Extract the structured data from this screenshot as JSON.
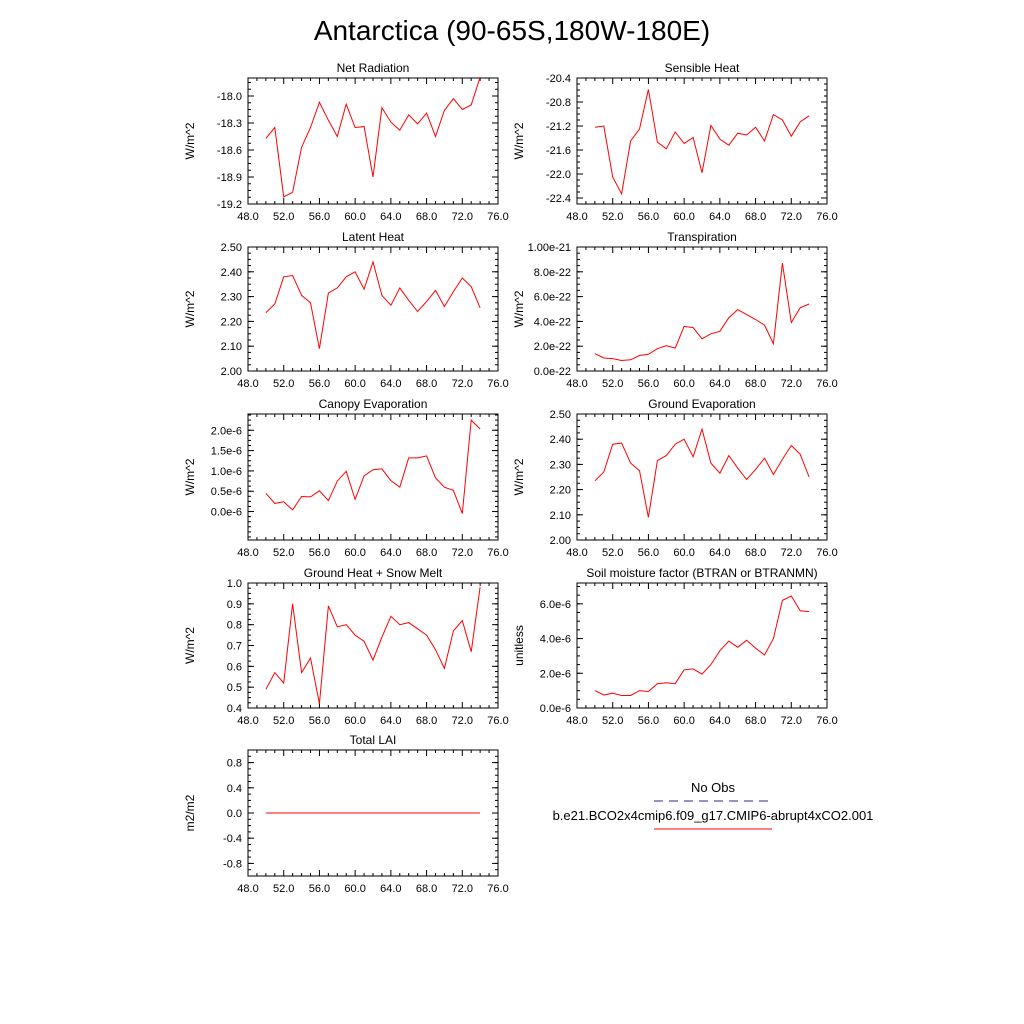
{
  "title": "Antarctica (90-65S,180W-180E)",
  "colors": {
    "series": "#ff0000",
    "obs": "#2a2a8a",
    "axis": "#000000"
  },
  "legend": {
    "obs_label": "No Obs",
    "case_label": "b.e21.BCO2x4cmip6.f09_g17.CMIP6-abrupt4xCO2.001"
  },
  "chart_data": [
    {
      "type": "line",
      "title": "Net Radiation",
      "ylabel": "W/m^2",
      "xlim": [
        48,
        76
      ],
      "ylim": [
        -19.2,
        -17.8
      ],
      "xticks": [
        "48.0",
        "52.0",
        "56.0",
        "60.0",
        "64.0",
        "68.0",
        "72.0",
        "76.0"
      ],
      "yticks": [
        -19.2,
        -18.9,
        -18.6,
        -18.3,
        -18.0
      ],
      "ytick_labels": [
        "-19.2",
        "-18.9",
        "-18.6",
        "-18.3",
        "-18.0"
      ],
      "x": [
        50,
        51,
        52,
        53,
        54,
        55,
        56,
        57,
        58,
        59,
        60,
        61,
        62,
        63,
        64,
        65,
        66,
        67,
        68,
        69,
        70,
        71,
        72,
        73,
        74
      ],
      "values": [
        -18.47,
        -18.35,
        -19.12,
        -19.07,
        -18.57,
        -18.35,
        -18.07,
        -18.27,
        -18.45,
        -18.09,
        -18.35,
        -18.34,
        -18.9,
        -18.13,
        -18.29,
        -18.38,
        -18.21,
        -18.31,
        -18.19,
        -18.45,
        -18.16,
        -18.03,
        -18.15,
        -18.1,
        -17.79
      ]
    },
    {
      "type": "line",
      "title": "Sensible Heat",
      "ylabel": "W/m^2",
      "xlim": [
        48,
        76
      ],
      "ylim": [
        -22.5,
        -20.4
      ],
      "xticks": [
        "48.0",
        "52.0",
        "56.0",
        "60.0",
        "64.0",
        "68.0",
        "72.0",
        "76.0"
      ],
      "yticks": [
        -22.4,
        -22.0,
        -21.6,
        -21.2,
        -20.8,
        -20.4
      ],
      "ytick_labels": [
        "-22.4",
        "-22.0",
        "-21.6",
        "-21.2",
        "-20.8",
        "-20.4"
      ],
      "x": [
        50,
        51,
        52,
        53,
        54,
        55,
        56,
        57,
        58,
        59,
        60,
        61,
        62,
        63,
        64,
        65,
        66,
        67,
        68,
        69,
        70,
        71,
        72,
        73,
        74
      ],
      "values": [
        -21.22,
        -21.2,
        -22.05,
        -22.33,
        -21.45,
        -21.25,
        -20.59,
        -21.47,
        -21.58,
        -21.3,
        -21.49,
        -21.39,
        -21.98,
        -21.19,
        -21.42,
        -21.52,
        -21.32,
        -21.35,
        -21.22,
        -21.45,
        -21.01,
        -21.1,
        -21.37,
        -21.13,
        -21.03
      ]
    },
    {
      "type": "line",
      "title": "Latent Heat",
      "ylabel": "W/m^2",
      "xlim": [
        48,
        76
      ],
      "ylim": [
        2.0,
        2.5
      ],
      "xticks": [
        "48.0",
        "52.0",
        "56.0",
        "60.0",
        "64.0",
        "68.0",
        "72.0",
        "76.0"
      ],
      "yticks": [
        2.0,
        2.1,
        2.2,
        2.3,
        2.4,
        2.5
      ],
      "ytick_labels": [
        "2.00",
        "2.10",
        "2.20",
        "2.30",
        "2.40",
        "2.50"
      ],
      "x": [
        50,
        51,
        52,
        53,
        54,
        55,
        56,
        57,
        58,
        59,
        60,
        61,
        62,
        63,
        64,
        65,
        66,
        67,
        68,
        69,
        70,
        71,
        72,
        73,
        74
      ],
      "values": [
        2.235,
        2.27,
        2.38,
        2.385,
        2.305,
        2.275,
        2.09,
        2.315,
        2.335,
        2.38,
        2.4,
        2.33,
        2.44,
        2.305,
        2.265,
        2.335,
        2.285,
        2.24,
        2.28,
        2.325,
        2.26,
        2.32,
        2.375,
        2.34,
        2.255
      ]
    },
    {
      "type": "line",
      "title": "Transpiration",
      "ylabel": "W/m^2",
      "xlim": [
        48,
        76
      ],
      "ylim": [
        0,
        1e-21
      ],
      "xticks": [
        "48.0",
        "52.0",
        "56.0",
        "60.0",
        "64.0",
        "68.0",
        "72.0",
        "76.0"
      ],
      "yticks": [
        0,
        2e-22,
        4e-22,
        6e-22,
        8e-22,
        1e-21
      ],
      "ytick_labels": [
        "0.0e-22",
        "2.0e-22",
        "4.0e-22",
        "6.0e-22",
        "8.0e-22",
        "1.00e-21"
      ],
      "x": [
        50,
        51,
        52,
        53,
        54,
        55,
        56,
        57,
        58,
        59,
        60,
        61,
        62,
        63,
        64,
        65,
        66,
        67,
        68,
        69,
        70,
        71,
        72,
        73,
        74
      ],
      "values": [
        1.4e-22,
        1.05e-22,
        1e-22,
        8.5e-23,
        9e-23,
        1.25e-22,
        1.35e-22,
        1.8e-22,
        2.05e-22,
        1.85e-22,
        3.6e-22,
        3.5e-22,
        2.6e-22,
        3e-22,
        3.2e-22,
        4.3e-22,
        4.95e-22,
        4.55e-22,
        4.15e-22,
        3.7e-22,
        2.2e-22,
        8.7e-22,
        3.9e-22,
        5.1e-22,
        5.4e-22
      ]
    },
    {
      "type": "line",
      "title": "Canopy Evaporation",
      "ylabel": "W/m^2",
      "xlim": [
        48,
        76
      ],
      "ylim": [
        -7e-07,
        2.4e-06
      ],
      "xticks": [
        "48.0",
        "52.0",
        "56.0",
        "60.0",
        "64.0",
        "68.0",
        "72.0",
        "76.0"
      ],
      "yticks": [
        0,
        5e-07,
        1e-06,
        1.5e-06,
        2e-06
      ],
      "ytick_labels": [
        "0.0e-6",
        "0.5e-6",
        "1.0e-6",
        "1.5e-6",
        "2.0e-6"
      ],
      "x": [
        50,
        51,
        52,
        53,
        54,
        55,
        56,
        57,
        58,
        59,
        60,
        61,
        62,
        63,
        64,
        65,
        66,
        67,
        68,
        69,
        70,
        71,
        72,
        73,
        74
      ],
      "values": [
        4.5e-07,
        2e-07,
        2.4e-07,
        4e-08,
        3.7e-07,
        3.6e-07,
        5.1e-07,
        2.7e-07,
        7.5e-07,
        9.9e-07,
        3e-07,
        8.8e-07,
        1.03e-06,
        1.05e-06,
        7.6e-07,
        6e-07,
        1.32e-06,
        1.32e-06,
        1.37e-06,
        8.3e-07,
        6e-07,
        5.2e-07,
        -5e-08,
        2.25e-06,
        2.03e-06
      ]
    },
    {
      "type": "line",
      "title": "Ground Evaporation",
      "ylabel": "W/m^2",
      "xlim": [
        48,
        76
      ],
      "ylim": [
        2.0,
        2.5
      ],
      "xticks": [
        "48.0",
        "52.0",
        "56.0",
        "60.0",
        "64.0",
        "68.0",
        "72.0",
        "76.0"
      ],
      "yticks": [
        2.0,
        2.1,
        2.2,
        2.3,
        2.4,
        2.5
      ],
      "ytick_labels": [
        "2.00",
        "2.10",
        "2.20",
        "2.30",
        "2.40",
        "2.50"
      ],
      "x": [
        50,
        51,
        52,
        53,
        54,
        55,
        56,
        57,
        58,
        59,
        60,
        61,
        62,
        63,
        64,
        65,
        66,
        67,
        68,
        69,
        70,
        71,
        72,
        73,
        74
      ],
      "values": [
        2.235,
        2.27,
        2.38,
        2.385,
        2.305,
        2.275,
        2.09,
        2.315,
        2.335,
        2.38,
        2.4,
        2.33,
        2.44,
        2.305,
        2.265,
        2.335,
        2.285,
        2.24,
        2.28,
        2.325,
        2.26,
        2.32,
        2.375,
        2.34,
        2.25
      ]
    },
    {
      "type": "line",
      "title": "Ground Heat + Snow Melt",
      "ylabel": "W/m^2",
      "xlim": [
        48,
        76
      ],
      "ylim": [
        0.4,
        1.0
      ],
      "xticks": [
        "48.0",
        "52.0",
        "56.0",
        "60.0",
        "64.0",
        "68.0",
        "72.0",
        "76.0"
      ],
      "yticks": [
        0.4,
        0.5,
        0.6,
        0.7,
        0.8,
        0.9,
        1.0
      ],
      "ytick_labels": [
        "0.4",
        "0.5",
        "0.6",
        "0.7",
        "0.8",
        "0.9",
        "1.0"
      ],
      "x": [
        50,
        51,
        52,
        53,
        54,
        55,
        56,
        57,
        58,
        59,
        60,
        61,
        62,
        63,
        64,
        65,
        66,
        67,
        68,
        69,
        70,
        71,
        72,
        73,
        74
      ],
      "values": [
        0.49,
        0.57,
        0.52,
        0.9,
        0.57,
        0.64,
        0.42,
        0.89,
        0.79,
        0.8,
        0.75,
        0.72,
        0.63,
        0.74,
        0.84,
        0.8,
        0.81,
        0.78,
        0.75,
        0.68,
        0.59,
        0.77,
        0.82,
        0.67,
        0.98
      ]
    },
    {
      "type": "line",
      "title": "Soil moisture factor (BTRAN or BTRANMN)",
      "ylabel": "unitless",
      "xlim": [
        48,
        76
      ],
      "ylim": [
        0,
        7.2e-06
      ],
      "xticks": [
        "48.0",
        "52.0",
        "56.0",
        "60.0",
        "64.0",
        "68.0",
        "72.0",
        "76.0"
      ],
      "yticks": [
        0,
        2e-06,
        4e-06,
        6e-06
      ],
      "ytick_labels": [
        "0.0e-6",
        "2.0e-6",
        "4.0e-6",
        "6.0e-6"
      ],
      "x": [
        50,
        51,
        52,
        53,
        54,
        55,
        56,
        57,
        58,
        59,
        60,
        61,
        62,
        63,
        64,
        65,
        66,
        67,
        68,
        69,
        70,
        71,
        72,
        73,
        74
      ],
      "values": [
        1e-06,
        7.5e-07,
        8.5e-07,
        7.2e-07,
        7.2e-07,
        1e-06,
        9.5e-07,
        1.4e-06,
        1.45e-06,
        1.4e-06,
        2.2e-06,
        2.25e-06,
        1.95e-06,
        2.5e-06,
        3.3e-06,
        3.85e-06,
        3.5e-06,
        3.9e-06,
        3.45e-06,
        3.05e-06,
        4e-06,
        6.2e-06,
        6.45e-06,
        5.6e-06,
        5.55e-06
      ]
    },
    {
      "type": "line",
      "title": "Total LAI",
      "ylabel": "m2/m2",
      "xlim": [
        48,
        76
      ],
      "ylim": [
        -1.0,
        1.0
      ],
      "xticks": [
        "48.0",
        "52.0",
        "56.0",
        "60.0",
        "64.0",
        "68.0",
        "72.0",
        "76.0"
      ],
      "yticks": [
        -0.8,
        -0.4,
        0.0,
        0.4,
        0.8
      ],
      "ytick_labels": [
        "-0.8",
        "-0.4",
        "0.0",
        "0.4",
        "0.8"
      ],
      "x": [
        50,
        51,
        52,
        53,
        54,
        55,
        56,
        57,
        58,
        59,
        60,
        61,
        62,
        63,
        64,
        65,
        66,
        67,
        68,
        69,
        70,
        71,
        72,
        73,
        74
      ],
      "values": [
        0,
        0,
        0,
        0,
        0,
        0,
        0,
        0,
        0,
        0,
        0,
        0,
        0,
        0,
        0,
        0,
        0,
        0,
        0,
        0,
        0,
        0,
        0,
        0,
        0
      ]
    }
  ]
}
